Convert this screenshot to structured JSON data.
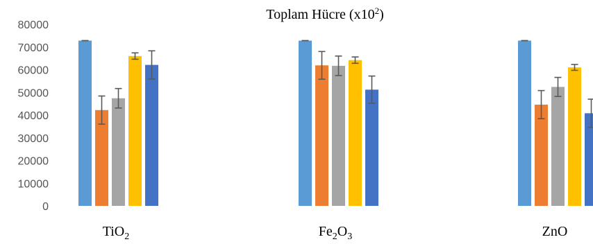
{
  "chart_data": {
    "type": "bar",
    "title": "Toplam Hücre (x10",
    "title_superscript": "2",
    "title_suffix": ")",
    "categories": [
      {
        "name": "TiO",
        "sub": "2",
        "tail": ""
      },
      {
        "name": "Fe",
        "sub": "2",
        "tail": "O",
        "sub2": "3"
      },
      {
        "name": "ZnO",
        "sub": "",
        "tail": ""
      }
    ],
    "ylim": [
      0,
      80000
    ],
    "yticks": [
      "80000",
      "70000",
      "60000",
      "50000",
      "40000",
      "30000",
      "20000",
      "10000",
      "0"
    ],
    "grid": false,
    "legend": "none",
    "series": [
      {
        "color": "#5B9BD5",
        "values": [
          72800,
          72800,
          72800
        ],
        "errors": [
          0,
          0,
          0
        ]
      },
      {
        "color": "#ED7D31",
        "values": [
          42200,
          61900,
          44600
        ],
        "errors": [
          6200,
          6100,
          6200
        ]
      },
      {
        "color": "#A5A5A5",
        "values": [
          47400,
          61700,
          52400
        ],
        "errors": [
          4300,
          4300,
          4200
        ]
      },
      {
        "color": "#FFC000",
        "values": [
          66000,
          64200,
          61000
        ],
        "errors": [
          1400,
          1400,
          1300
        ]
      },
      {
        "color": "#4472C4",
        "values": [
          62100,
          51200,
          40800
        ],
        "errors": [
          6200,
          6000,
          6200
        ]
      }
    ]
  }
}
